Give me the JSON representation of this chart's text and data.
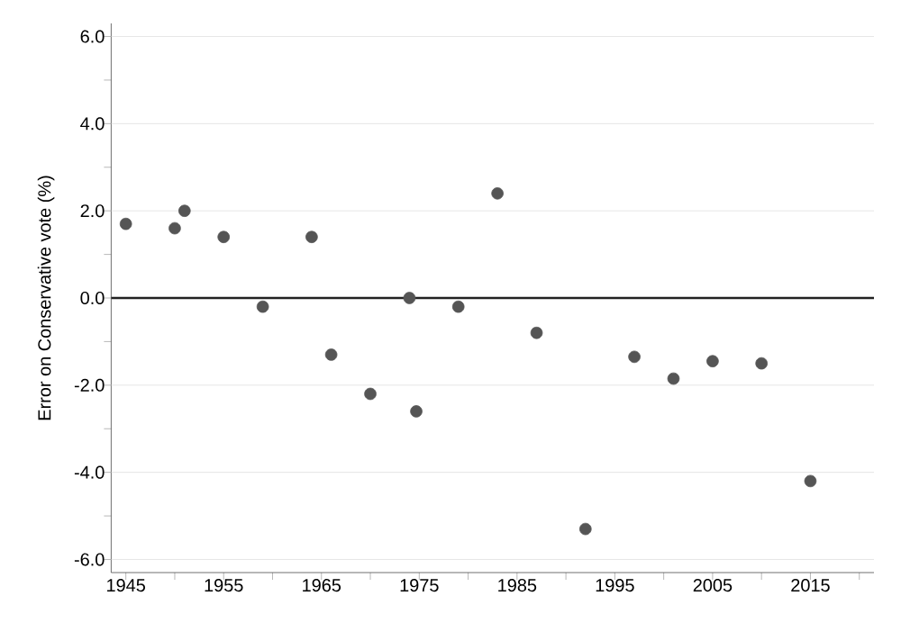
{
  "chart_data": {
    "type": "scatter",
    "ylabel": "Error on Conservative vote (%)",
    "x": [
      1945,
      1950,
      1951,
      1955,
      1959,
      1964,
      1966,
      1970,
      1974,
      1974.7,
      1979,
      1983,
      1987,
      1992,
      1997,
      2001,
      2005,
      2010,
      2015
    ],
    "values": [
      1.7,
      1.6,
      2.0,
      1.4,
      -0.2,
      1.4,
      -1.3,
      -2.2,
      0.0,
      -2.6,
      -0.2,
      2.4,
      -0.8,
      -5.3,
      -1.35,
      -1.85,
      -1.45,
      -1.5,
      -4.2
    ],
    "color": "#555555",
    "marker": "circle",
    "xlim": [
      1943.5,
      2021.5
    ],
    "xticks": [
      1945,
      {
        "value": 1950,
        "label": null
      },
      1955,
      {
        "value": 1960,
        "label": null
      },
      1965,
      {
        "value": 1970,
        "label": null
      },
      1975,
      {
        "value": 1980,
        "label": null
      },
      1985,
      {
        "value": 1990,
        "label": null
      },
      1995,
      {
        "value": 2000,
        "label": null
      },
      2005,
      {
        "value": 2010,
        "label": null
      },
      2015,
      {
        "value": 2020,
        "label": null
      }
    ],
    "ylim": [
      -6.3,
      6.3
    ],
    "yticks": [
      {
        "value": -6,
        "label": "-6.0"
      },
      {
        "value": -5,
        "label": null
      },
      {
        "value": -4,
        "label": "-4.0"
      },
      {
        "value": -3,
        "label": null
      },
      {
        "value": -2,
        "label": "-2.0"
      },
      {
        "value": -1,
        "label": null
      },
      {
        "value": 0,
        "label": "0.0"
      },
      {
        "value": 1,
        "label": null
      },
      {
        "value": 2,
        "label": "2.0"
      },
      {
        "value": 3,
        "label": null
      },
      {
        "value": 4,
        "label": "4.0"
      },
      {
        "value": 5,
        "label": null
      },
      {
        "value": 6,
        "label": "6.0"
      }
    ],
    "grid": "y",
    "ref_lines": [
      {
        "axis": "y",
        "value": 0,
        "color": "#222222"
      }
    ]
  }
}
